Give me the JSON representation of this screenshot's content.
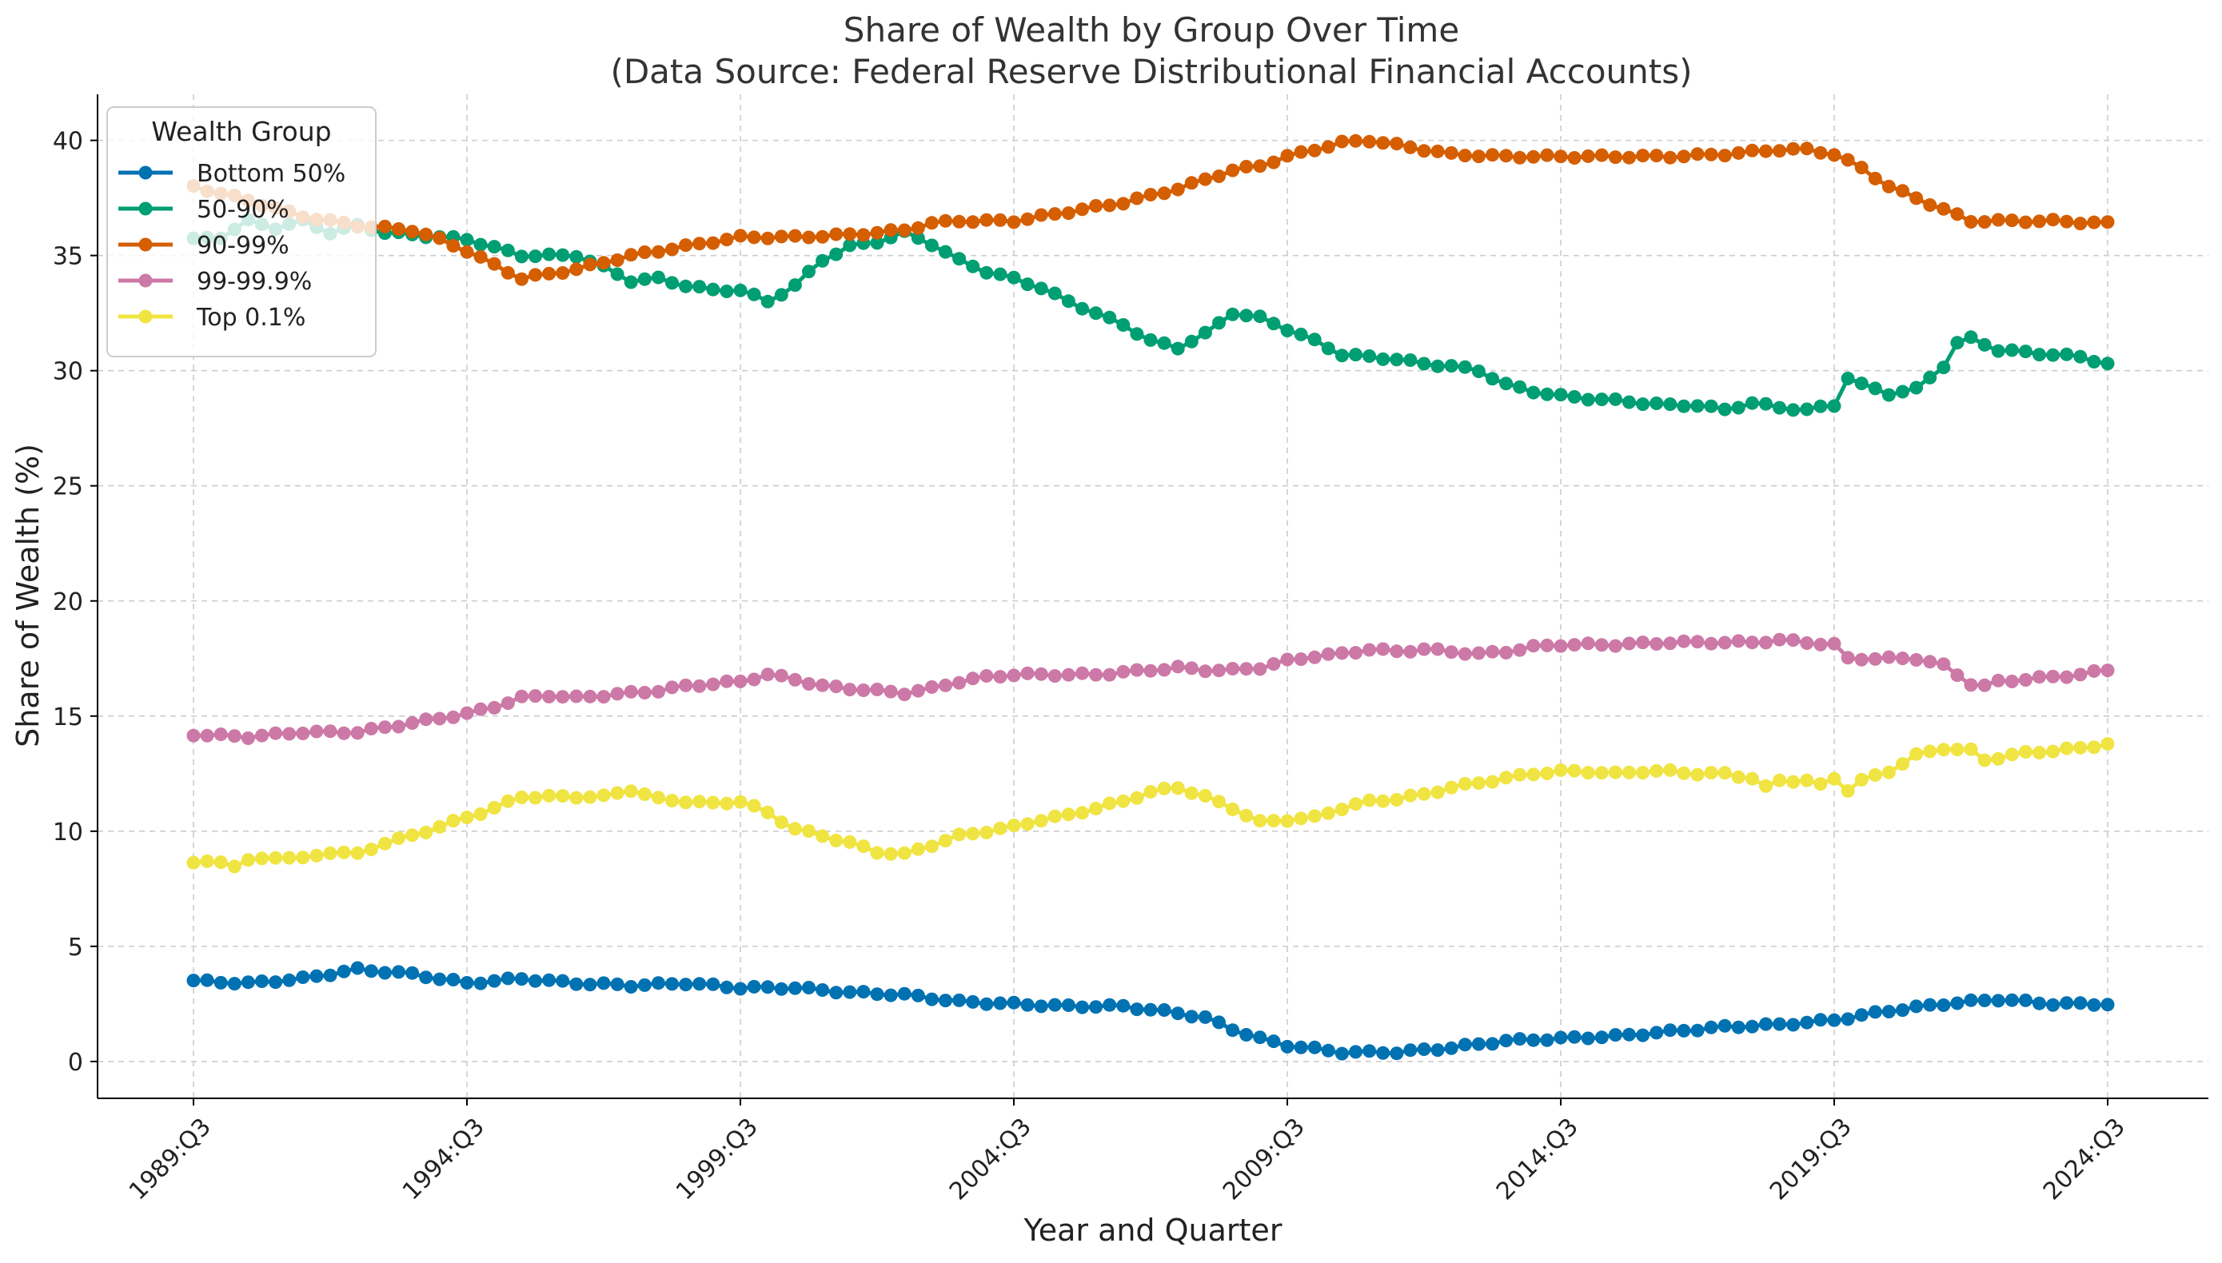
{
  "chart_data": {
    "type": "line",
    "title": "Share of Wealth by Group Over Time",
    "subtitle": "(Data Source: Federal Reserve Distributional Financial Accounts)",
    "xlabel": "Year and Quarter",
    "ylabel": "Share of Wealth (%)",
    "ylim": [
      -1.6,
      42
    ],
    "grid": true,
    "legend_title": "Wealth Group",
    "legend_position": "top-left",
    "x_start": "1989:Q3",
    "x_end": "2024:Q3",
    "x_ticks": [
      {
        "label": "1989:Q3",
        "index": 0
      },
      {
        "label": "1994:Q3",
        "index": 20
      },
      {
        "label": "1999:Q3",
        "index": 40
      },
      {
        "label": "2004:Q3",
        "index": 60
      },
      {
        "label": "2009:Q3",
        "index": 80
      },
      {
        "label": "2014:Q3",
        "index": 100
      },
      {
        "label": "2019:Q3",
        "index": 120
      },
      {
        "label": "2024:Q3",
        "index": 140
      }
    ],
    "y_ticks": [
      0,
      5,
      10,
      15,
      20,
      25,
      30,
      35,
      40
    ],
    "series": [
      {
        "name": "Bottom 50%",
        "color": "#0072B2",
        "anchors": [
          [
            0,
            3.5
          ],
          [
            4,
            3.4
          ],
          [
            8,
            3.6
          ],
          [
            12,
            4.0
          ],
          [
            16,
            3.8
          ],
          [
            20,
            3.4
          ],
          [
            24,
            3.6
          ],
          [
            28,
            3.4
          ],
          [
            32,
            3.3
          ],
          [
            36,
            3.4
          ],
          [
            40,
            3.2
          ],
          [
            44,
            3.2
          ],
          [
            48,
            3.0
          ],
          [
            52,
            2.9
          ],
          [
            56,
            2.6
          ],
          [
            60,
            2.5
          ],
          [
            64,
            2.4
          ],
          [
            68,
            2.4
          ],
          [
            72,
            2.1
          ],
          [
            74,
            1.9
          ],
          [
            76,
            1.4
          ],
          [
            78,
            1.0
          ],
          [
            80,
            0.7
          ],
          [
            84,
            0.4
          ],
          [
            88,
            0.4
          ],
          [
            92,
            0.6
          ],
          [
            96,
            0.9
          ],
          [
            100,
            1.0
          ],
          [
            104,
            1.1
          ],
          [
            108,
            1.3
          ],
          [
            112,
            1.5
          ],
          [
            116,
            1.6
          ],
          [
            120,
            1.8
          ],
          [
            124,
            2.2
          ],
          [
            128,
            2.5
          ],
          [
            132,
            2.7
          ],
          [
            136,
            2.5
          ],
          [
            140,
            2.5
          ]
        ]
      },
      {
        "name": "50-90%",
        "color": "#009E73",
        "anchors": [
          [
            0,
            35.7
          ],
          [
            2,
            35.8
          ],
          [
            4,
            36.5
          ],
          [
            6,
            36.2
          ],
          [
            8,
            36.5
          ],
          [
            10,
            36.0
          ],
          [
            12,
            36.3
          ],
          [
            14,
            36.0
          ],
          [
            16,
            35.9
          ],
          [
            20,
            35.7
          ],
          [
            24,
            35.0
          ],
          [
            28,
            35.0
          ],
          [
            30,
            34.5
          ],
          [
            32,
            33.9
          ],
          [
            34,
            34.0
          ],
          [
            36,
            33.7
          ],
          [
            38,
            33.5
          ],
          [
            40,
            33.5
          ],
          [
            42,
            33.0
          ],
          [
            44,
            33.7
          ],
          [
            46,
            34.8
          ],
          [
            48,
            35.4
          ],
          [
            50,
            35.6
          ],
          [
            52,
            36.0
          ],
          [
            54,
            35.5
          ],
          [
            56,
            34.8
          ],
          [
            58,
            34.3
          ],
          [
            60,
            34.0
          ],
          [
            62,
            33.6
          ],
          [
            64,
            33.0
          ],
          [
            66,
            32.5
          ],
          [
            68,
            32.0
          ],
          [
            70,
            31.3
          ],
          [
            72,
            31.0
          ],
          [
            74,
            31.6
          ],
          [
            76,
            32.5
          ],
          [
            78,
            32.3
          ],
          [
            80,
            31.8
          ],
          [
            82,
            31.3
          ],
          [
            84,
            30.7
          ],
          [
            86,
            30.6
          ],
          [
            88,
            30.5
          ],
          [
            90,
            30.3
          ],
          [
            92,
            30.2
          ],
          [
            94,
            30.0
          ],
          [
            96,
            29.4
          ],
          [
            98,
            29.1
          ],
          [
            100,
            28.9
          ],
          [
            102,
            28.8
          ],
          [
            104,
            28.7
          ],
          [
            106,
            28.6
          ],
          [
            108,
            28.5
          ],
          [
            110,
            28.5
          ],
          [
            112,
            28.3
          ],
          [
            114,
            28.6
          ],
          [
            116,
            28.4
          ],
          [
            118,
            28.3
          ],
          [
            120,
            28.5
          ],
          [
            121,
            29.7
          ],
          [
            122,
            29.4
          ],
          [
            124,
            29.0
          ],
          [
            126,
            29.2
          ],
          [
            128,
            30.2
          ],
          [
            129,
            31.2
          ],
          [
            130,
            31.4
          ],
          [
            132,
            30.9
          ],
          [
            134,
            30.8
          ],
          [
            136,
            30.7
          ],
          [
            138,
            30.6
          ],
          [
            140,
            30.3
          ]
        ]
      },
      {
        "name": "90-99%",
        "color": "#D55E00",
        "anchors": [
          [
            0,
            38.0
          ],
          [
            4,
            37.4
          ],
          [
            8,
            36.7
          ],
          [
            12,
            36.3
          ],
          [
            16,
            36.1
          ],
          [
            18,
            35.7
          ],
          [
            20,
            35.2
          ],
          [
            22,
            34.6
          ],
          [
            24,
            34.0
          ],
          [
            26,
            34.2
          ],
          [
            28,
            34.4
          ],
          [
            30,
            34.7
          ],
          [
            32,
            35.0
          ],
          [
            34,
            35.2
          ],
          [
            36,
            35.4
          ],
          [
            38,
            35.6
          ],
          [
            40,
            35.8
          ],
          [
            44,
            35.8
          ],
          [
            48,
            35.9
          ],
          [
            52,
            36.1
          ],
          [
            54,
            36.4
          ],
          [
            56,
            36.5
          ],
          [
            60,
            36.5
          ],
          [
            64,
            36.9
          ],
          [
            68,
            37.3
          ],
          [
            72,
            37.9
          ],
          [
            74,
            38.3
          ],
          [
            76,
            38.7
          ],
          [
            78,
            38.9
          ],
          [
            80,
            39.3
          ],
          [
            82,
            39.6
          ],
          [
            84,
            39.9
          ],
          [
            86,
            40.0
          ],
          [
            88,
            39.8
          ],
          [
            90,
            39.6
          ],
          [
            92,
            39.4
          ],
          [
            96,
            39.3
          ],
          [
            100,
            39.3
          ],
          [
            104,
            39.3
          ],
          [
            108,
            39.3
          ],
          [
            112,
            39.4
          ],
          [
            114,
            39.5
          ],
          [
            116,
            39.6
          ],
          [
            118,
            39.6
          ],
          [
            120,
            39.4
          ],
          [
            122,
            38.8
          ],
          [
            124,
            38.0
          ],
          [
            126,
            37.5
          ],
          [
            128,
            37.0
          ],
          [
            130,
            36.5
          ],
          [
            132,
            36.5
          ],
          [
            136,
            36.5
          ],
          [
            140,
            36.4
          ]
        ]
      },
      {
        "name": "99-99.9%",
        "color": "#CC79A7",
        "anchors": [
          [
            0,
            14.2
          ],
          [
            4,
            14.1
          ],
          [
            8,
            14.3
          ],
          [
            12,
            14.3
          ],
          [
            14,
            14.5
          ],
          [
            16,
            14.7
          ],
          [
            20,
            15.1
          ],
          [
            22,
            15.4
          ],
          [
            24,
            15.8
          ],
          [
            26,
            15.9
          ],
          [
            28,
            15.8
          ],
          [
            30,
            15.9
          ],
          [
            32,
            16.0
          ],
          [
            34,
            16.1
          ],
          [
            36,
            16.3
          ],
          [
            38,
            16.4
          ],
          [
            40,
            16.5
          ],
          [
            42,
            16.8
          ],
          [
            44,
            16.6
          ],
          [
            46,
            16.3
          ],
          [
            48,
            16.2
          ],
          [
            50,
            16.1
          ],
          [
            52,
            16.0
          ],
          [
            54,
            16.2
          ],
          [
            56,
            16.5
          ],
          [
            58,
            16.7
          ],
          [
            60,
            16.8
          ],
          [
            62,
            16.8
          ],
          [
            64,
            16.8
          ],
          [
            66,
            16.8
          ],
          [
            68,
            16.9
          ],
          [
            70,
            17.0
          ],
          [
            72,
            17.1
          ],
          [
            74,
            17.0
          ],
          [
            76,
            17.0
          ],
          [
            78,
            17.1
          ],
          [
            80,
            17.4
          ],
          [
            82,
            17.6
          ],
          [
            84,
            17.7
          ],
          [
            86,
            17.9
          ],
          [
            88,
            17.8
          ],
          [
            90,
            17.9
          ],
          [
            92,
            17.8
          ],
          [
            94,
            17.7
          ],
          [
            96,
            17.8
          ],
          [
            98,
            18.0
          ],
          [
            100,
            18.1
          ],
          [
            104,
            18.1
          ],
          [
            108,
            18.2
          ],
          [
            112,
            18.2
          ],
          [
            114,
            18.2
          ],
          [
            116,
            18.3
          ],
          [
            118,
            18.2
          ],
          [
            120,
            18.1
          ],
          [
            121,
            17.5
          ],
          [
            122,
            17.5
          ],
          [
            124,
            17.5
          ],
          [
            126,
            17.5
          ],
          [
            128,
            17.2
          ],
          [
            129,
            16.8
          ],
          [
            130,
            16.4
          ],
          [
            131,
            16.3
          ],
          [
            132,
            16.5
          ],
          [
            134,
            16.6
          ],
          [
            136,
            16.7
          ],
          [
            138,
            16.8
          ],
          [
            140,
            17.0
          ]
        ]
      },
      {
        "name": "Top 0.1%",
        "color": "#F0E442",
        "anchors": [
          [
            0,
            8.6
          ],
          [
            2,
            8.7
          ],
          [
            3,
            8.5
          ],
          [
            4,
            8.7
          ],
          [
            6,
            8.9
          ],
          [
            8,
            8.8
          ],
          [
            10,
            9.1
          ],
          [
            12,
            9.0
          ],
          [
            14,
            9.5
          ],
          [
            16,
            9.8
          ],
          [
            18,
            10.2
          ],
          [
            20,
            10.6
          ],
          [
            22,
            11.0
          ],
          [
            24,
            11.5
          ],
          [
            26,
            11.5
          ],
          [
            28,
            11.5
          ],
          [
            30,
            11.5
          ],
          [
            32,
            11.8
          ],
          [
            34,
            11.4
          ],
          [
            36,
            11.3
          ],
          [
            38,
            11.2
          ],
          [
            40,
            11.3
          ],
          [
            42,
            10.8
          ],
          [
            44,
            10.1
          ],
          [
            46,
            9.8
          ],
          [
            48,
            9.5
          ],
          [
            50,
            9.1
          ],
          [
            52,
            9.0
          ],
          [
            54,
            9.4
          ],
          [
            56,
            9.8
          ],
          [
            58,
            10.0
          ],
          [
            60,
            10.2
          ],
          [
            62,
            10.5
          ],
          [
            64,
            10.7
          ],
          [
            66,
            11.0
          ],
          [
            68,
            11.3
          ],
          [
            70,
            11.7
          ],
          [
            72,
            11.9
          ],
          [
            74,
            11.5
          ],
          [
            76,
            11.0
          ],
          [
            78,
            10.4
          ],
          [
            80,
            10.5
          ],
          [
            82,
            10.6
          ],
          [
            84,
            11.0
          ],
          [
            86,
            11.3
          ],
          [
            88,
            11.4
          ],
          [
            90,
            11.6
          ],
          [
            92,
            11.9
          ],
          [
            94,
            12.1
          ],
          [
            96,
            12.3
          ],
          [
            98,
            12.5
          ],
          [
            100,
            12.6
          ],
          [
            102,
            12.6
          ],
          [
            104,
            12.5
          ],
          [
            106,
            12.6
          ],
          [
            108,
            12.6
          ],
          [
            110,
            12.5
          ],
          [
            112,
            12.5
          ],
          [
            114,
            12.3
          ],
          [
            115,
            11.9
          ],
          [
            116,
            12.2
          ],
          [
            118,
            12.2
          ],
          [
            119,
            12.0
          ],
          [
            120,
            12.3
          ],
          [
            121,
            11.8
          ],
          [
            122,
            12.2
          ],
          [
            124,
            12.6
          ],
          [
            126,
            13.3
          ],
          [
            128,
            13.6
          ],
          [
            130,
            13.5
          ],
          [
            131,
            13.1
          ],
          [
            132,
            13.2
          ],
          [
            134,
            13.4
          ],
          [
            136,
            13.5
          ],
          [
            138,
            13.6
          ],
          [
            140,
            13.8
          ]
        ]
      }
    ]
  }
}
